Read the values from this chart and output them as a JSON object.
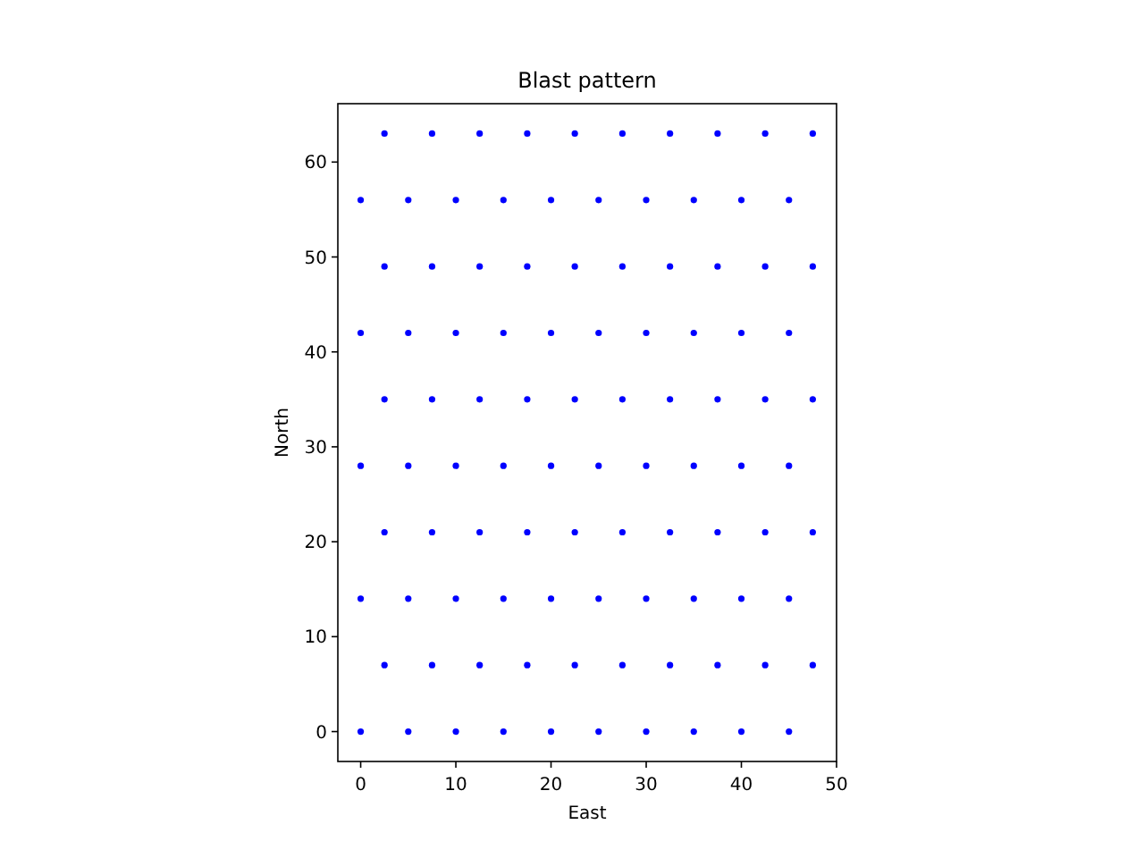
{
  "chart_data": {
    "type": "scatter",
    "title": "Blast pattern",
    "xlabel": "East",
    "ylabel": "North",
    "xlim": [
      -2.4,
      50
    ],
    "ylim": [
      -3.15,
      66.15
    ],
    "xticks": [
      0,
      10,
      20,
      30,
      40,
      50
    ],
    "yticks": [
      0,
      10,
      20,
      30,
      40,
      50,
      60
    ],
    "grid": false,
    "marker": "circle",
    "series": [
      {
        "color": "#0000ff",
        "x": [
          0,
          5,
          10,
          15,
          20,
          25,
          30,
          35,
          40,
          45,
          2.5,
          7.5,
          12.5,
          17.5,
          22.5,
          27.5,
          32.5,
          37.5,
          42.5,
          47.5,
          0,
          5,
          10,
          15,
          20,
          25,
          30,
          35,
          40,
          45,
          2.5,
          7.5,
          12.5,
          17.5,
          22.5,
          27.5,
          32.5,
          37.5,
          42.5,
          47.5,
          0,
          5,
          10,
          15,
          20,
          25,
          30,
          35,
          40,
          45,
          2.5,
          7.5,
          12.5,
          17.5,
          22.5,
          27.5,
          32.5,
          37.5,
          42.5,
          47.5,
          0,
          5,
          10,
          15,
          20,
          25,
          30,
          35,
          40,
          45,
          2.5,
          7.5,
          12.5,
          17.5,
          22.5,
          27.5,
          32.5,
          37.5,
          42.5,
          47.5,
          0,
          5,
          10,
          15,
          20,
          25,
          30,
          35,
          40,
          45,
          2.5,
          7.5,
          12.5,
          17.5,
          22.5,
          27.5,
          32.5,
          37.5,
          42.5,
          47.5
        ],
        "values": [
          0,
          0,
          0,
          0,
          0,
          0,
          0,
          0,
          0,
          0,
          7,
          7,
          7,
          7,
          7,
          7,
          7,
          7,
          7,
          7,
          14,
          14,
          14,
          14,
          14,
          14,
          14,
          14,
          14,
          14,
          21,
          21,
          21,
          21,
          21,
          21,
          21,
          21,
          21,
          21,
          28,
          28,
          28,
          28,
          28,
          28,
          28,
          28,
          28,
          28,
          35,
          35,
          35,
          35,
          35,
          35,
          35,
          35,
          35,
          35,
          42,
          42,
          42,
          42,
          42,
          42,
          42,
          42,
          42,
          42,
          49,
          49,
          49,
          49,
          49,
          49,
          49,
          49,
          49,
          49,
          56,
          56,
          56,
          56,
          56,
          56,
          56,
          56,
          56,
          56,
          63,
          63,
          63,
          63,
          63,
          63,
          63,
          63,
          63,
          63
        ]
      }
    ]
  }
}
